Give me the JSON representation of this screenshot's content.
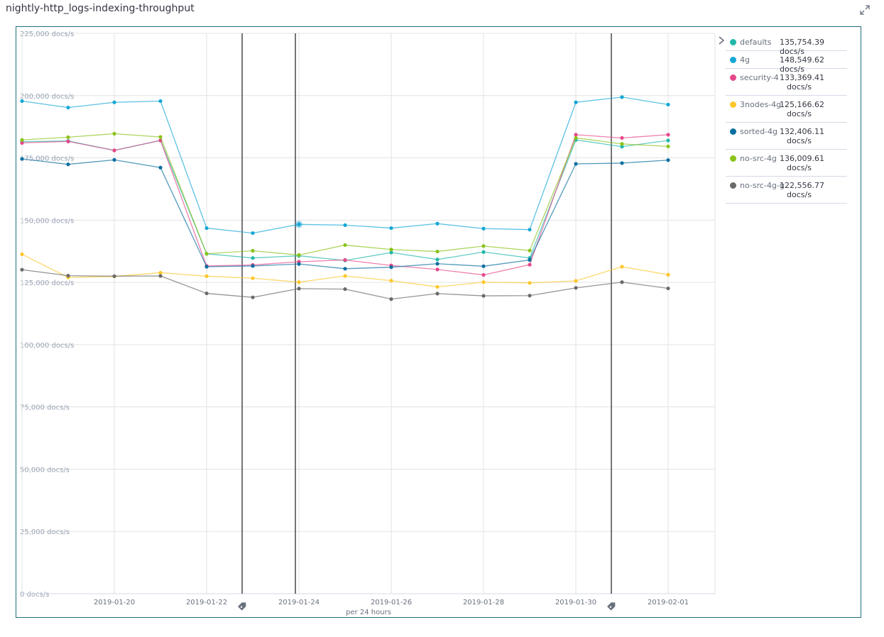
{
  "page": {
    "title": "nightly-http_logs-indexing-throughput",
    "expand_icon": "expand-icon"
  },
  "legend": {
    "toggle_icon": "chevron-right-icon",
    "items": [
      {
        "name": "defaults",
        "value": "135,754.39 docs/s",
        "color": "#20b8aa"
      },
      {
        "name": "4g",
        "value": "148,549.62 docs/s",
        "color": "#15a7d6"
      },
      {
        "name": "security-4",
        "value": "133,369.41",
        "unit": "docs/s",
        "color": "#e7488a"
      },
      {
        "name": "3nodes-4g",
        "value": "125,166.62",
        "unit": "docs/s",
        "color": "#fcc72c"
      },
      {
        "name": "sorted-4g",
        "value": "132,406.11",
        "unit": "docs/s",
        "color": "#0c6fa0"
      },
      {
        "name": "no-src-4g",
        "value": "136,009.61",
        "unit": "docs/s",
        "color": "#8ac31b"
      },
      {
        "name": "no-src-4g-g",
        "value": "122,556.77",
        "unit": "docs/s",
        "color": "#6a6a6a"
      }
    ]
  },
  "chart_data": {
    "type": "line",
    "xlabel": "per 24 hours",
    "ylabel": "",
    "ylim": [
      0,
      225000
    ],
    "yticks": [
      "0 docs/s",
      "25,000 docs/s",
      "50,000 docs/s",
      "75,000 docs/s",
      "100,000 docs/s",
      "125,000 docs/s",
      "150,000 docs/s",
      "175,000 docs/s",
      "200,000 docs/s",
      "225,000 docs/s"
    ],
    "ytick_values": [
      0,
      25000,
      50000,
      75000,
      100000,
      125000,
      150000,
      175000,
      200000,
      225000
    ],
    "xlim": [
      "2019-01-18",
      "2019-02-02"
    ],
    "xticks": [
      "2019-01-20",
      "2019-01-22",
      "2019-01-24",
      "2019-01-26",
      "2019-01-28",
      "2019-01-30",
      "2019-02-01"
    ],
    "x": [
      "2019-01-18",
      "2019-01-19",
      "2019-01-20",
      "2019-01-21",
      "2019-01-22",
      "2019-01-23",
      "2019-01-24",
      "2019-01-25",
      "2019-01-26",
      "2019-01-27",
      "2019-01-28",
      "2019-01-29",
      "2019-01-30",
      "2019-01-31",
      "2019-02-01"
    ],
    "grid": true,
    "legend": "right",
    "annotations": [
      {
        "date": "2019-01-22",
        "marker": "tag-icon"
      },
      {
        "date": "2019-01-30",
        "marker": "tag-icon"
      }
    ],
    "vertical_markers": [
      "2019-01-23"
    ],
    "highlighted_point": {
      "series": "4g",
      "x": "2019-01-24"
    },
    "series": [
      {
        "name": "defaults",
        "color": "#20b8aa",
        "values": [
          181500,
          181800,
          178000,
          182000,
          136500,
          134800,
          135700,
          133800,
          137000,
          134200,
          137200,
          134800,
          182200,
          179500,
          182000
        ]
      },
      {
        "name": "4g",
        "color": "#15a7d6",
        "values": [
          197800,
          195200,
          197300,
          197800,
          146800,
          144800,
          148300,
          148000,
          146800,
          148600,
          146600,
          146200,
          197300,
          199400,
          196400
        ]
      },
      {
        "name": "security-4",
        "color": "#e7488a",
        "values": [
          181000,
          181600,
          178000,
          182000,
          131600,
          132000,
          133300,
          134000,
          131800,
          130200,
          128000,
          132100,
          184300,
          183000,
          184300
        ]
      },
      {
        "name": "3nodes-4g",
        "color": "#fcc72c",
        "values": [
          136300,
          127000,
          127400,
          128900,
          127500,
          126700,
          125100,
          127600,
          125700,
          123200,
          125100,
          124800,
          125600,
          131300,
          128100
        ]
      },
      {
        "name": "sorted-4g",
        "color": "#0c6fa0",
        "values": [
          174600,
          172400,
          174200,
          171100,
          131300,
          131600,
          132400,
          130500,
          131100,
          132500,
          131500,
          134000,
          172600,
          172900,
          174100
        ]
      },
      {
        "name": "no-src-4g",
        "color": "#8ac31b",
        "values": [
          182200,
          183300,
          184700,
          183400,
          136500,
          137700,
          136000,
          140000,
          138200,
          137400,
          139600,
          137800,
          183000,
          180600,
          179600
        ]
      },
      {
        "name": "no-src-4g-g",
        "color": "#6a6a6a",
        "values": [
          130100,
          127700,
          127500,
          127600,
          120600,
          119000,
          122500,
          122300,
          118300,
          120500,
          119600,
          119700,
          122800,
          125100,
          122600
        ]
      }
    ]
  }
}
